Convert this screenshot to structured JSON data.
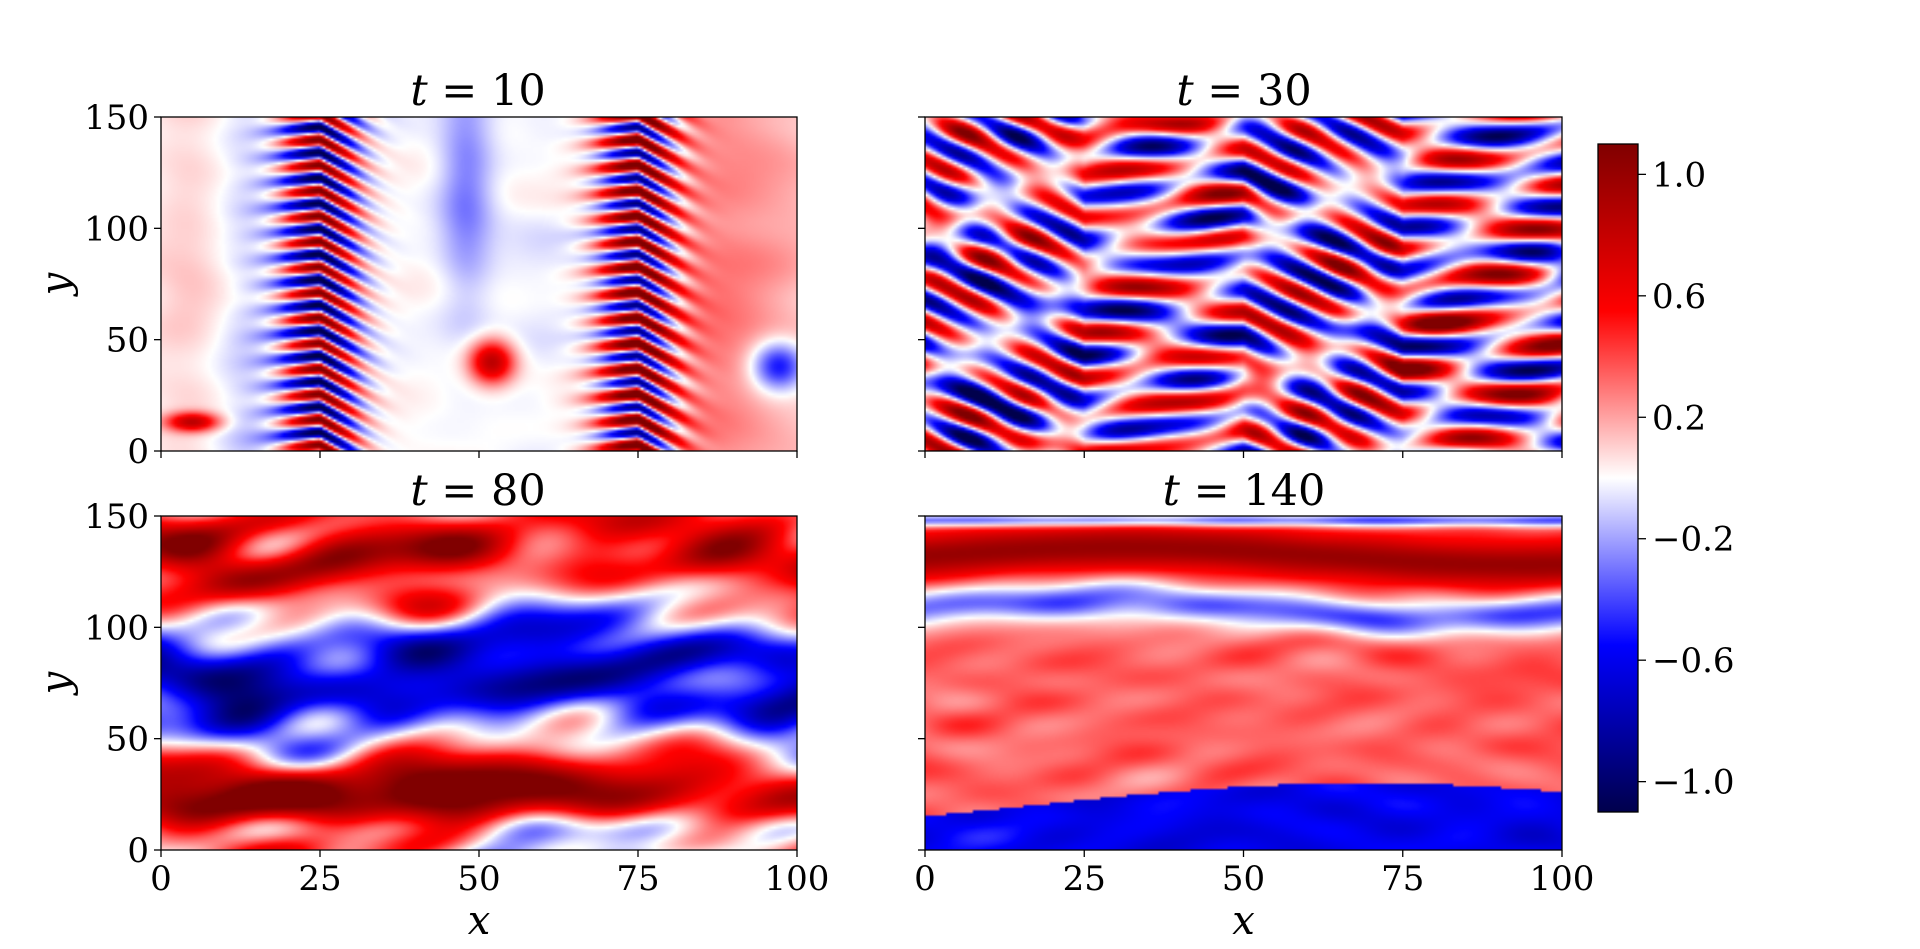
{
  "chart_data": {
    "type": "heatmap",
    "colormap": "seismic",
    "colorbar": {
      "range": [
        -1.1,
        1.1
      ],
      "ticks": [
        -1.0,
        -0.6,
        -0.2,
        0.2,
        0.6,
        1.0
      ],
      "tick_labels": [
        "−1.0",
        "−0.6",
        "−0.2",
        "0.2",
        "0.6",
        "1.0"
      ],
      "colors": {
        "low": "#00004c",
        "mid_blue": "#0000ff",
        "mid": "#ffffff",
        "mid_red": "#ff0000",
        "high": "#800000"
      }
    },
    "panels": [
      {
        "id": "t10",
        "title_var": "t",
        "title_value": "10",
        "xlim": [
          0,
          100
        ],
        "ylim": [
          0,
          150
        ],
        "xticks": [
          "0",
          "25",
          "50",
          "75",
          "100"
        ],
        "yticks": [
          "0",
          "50",
          "100",
          "150"
        ],
        "show_xticklabels": false,
        "show_yticklabels": true,
        "xlabel": "",
        "ylabel": "y",
        "pattern": "chevron-bands",
        "seed": 3
      },
      {
        "id": "t30",
        "title_var": "t",
        "title_value": "30",
        "xlim": [
          0,
          100
        ],
        "ylim": [
          0,
          150
        ],
        "xticks": [
          "0",
          "25",
          "50",
          "75",
          "100"
        ],
        "yticks": [
          "0",
          "50",
          "100",
          "150"
        ],
        "show_xticklabels": false,
        "show_yticklabels": false,
        "xlabel": "",
        "ylabel": "",
        "pattern": "turbulent-chevron",
        "seed": 7
      },
      {
        "id": "t80",
        "title_var": "t",
        "title_value": "80",
        "xlim": [
          0,
          100
        ],
        "ylim": [
          0,
          150
        ],
        "xticks": [
          "0",
          "25",
          "50",
          "75",
          "100"
        ],
        "yticks": [
          "0",
          "50",
          "100",
          "150"
        ],
        "show_xticklabels": true,
        "show_yticklabels": true,
        "xlabel": "x",
        "ylabel": "y",
        "pattern": "layered-turbulence",
        "seed": 11
      },
      {
        "id": "t140",
        "title_var": "t",
        "title_value": "140",
        "xlim": [
          0,
          100
        ],
        "ylim": [
          0,
          150
        ],
        "xticks": [
          "0",
          "25",
          "50",
          "75",
          "100"
        ],
        "yticks": [
          "0",
          "50",
          "100",
          "150"
        ],
        "show_xticklabels": true,
        "show_yticklabels": false,
        "xlabel": "x",
        "ylabel": "",
        "pattern": "zonal-jets",
        "seed": 19
      }
    ]
  }
}
